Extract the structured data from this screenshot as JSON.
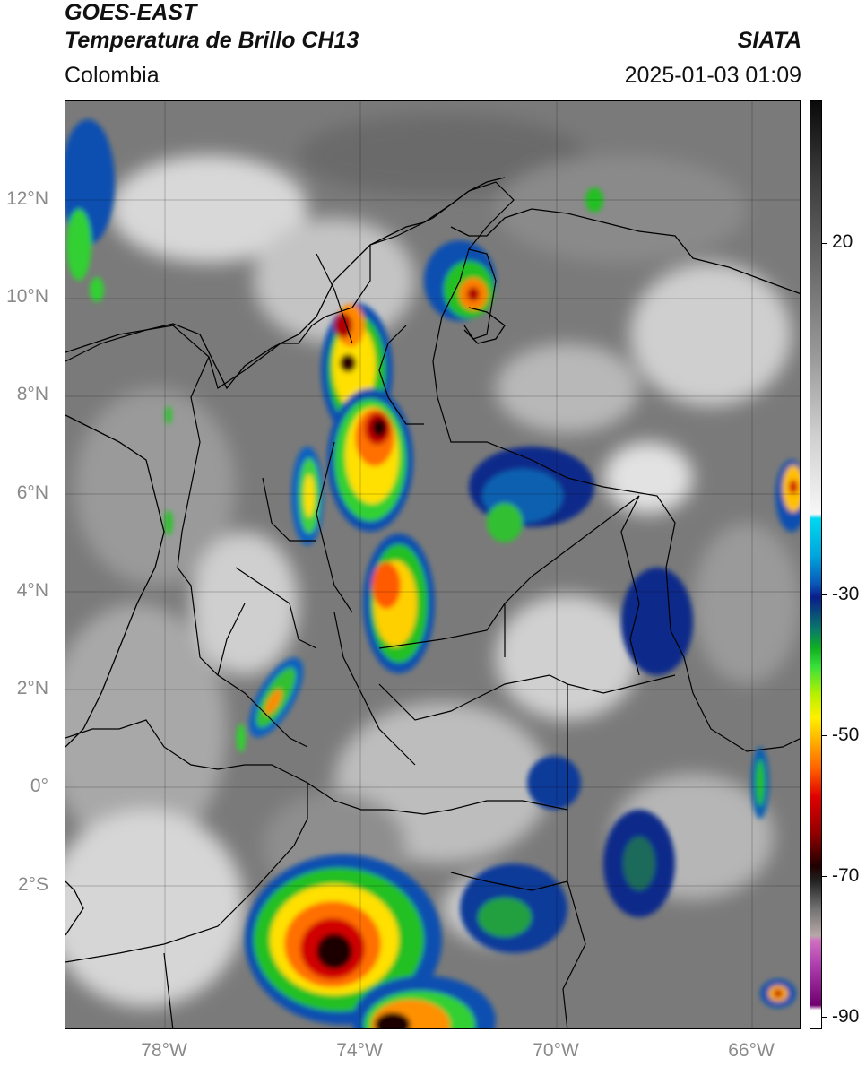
{
  "header": {
    "satellite": "GOES-EAST",
    "product": "Temperatura de Brillo CH13",
    "agency": "SIATA",
    "region": "Colombia",
    "datetime": "2025-01-03 01:09"
  },
  "axes": {
    "lat_labels": [
      "12°N",
      "10°N",
      "8°N",
      "6°N",
      "4°N",
      "2°N",
      "0°",
      "2°S"
    ],
    "lon_labels": [
      "78°W",
      "74°W",
      "70°W",
      "66°W"
    ]
  },
  "colorbar": {
    "tick_labels": [
      "20",
      "-30",
      "-50",
      "-70",
      "-90"
    ]
  },
  "colors": {
    "cloud_gray": "#7d7d7d",
    "cold_cyan": "#00c8f0",
    "deep_blue": "#0a2a9a",
    "green": "#20c020",
    "yellow": "#ffe800",
    "orange": "#ff8a00",
    "red": "#e00000",
    "dark_core": "#1a0000",
    "border": "#000000"
  }
}
